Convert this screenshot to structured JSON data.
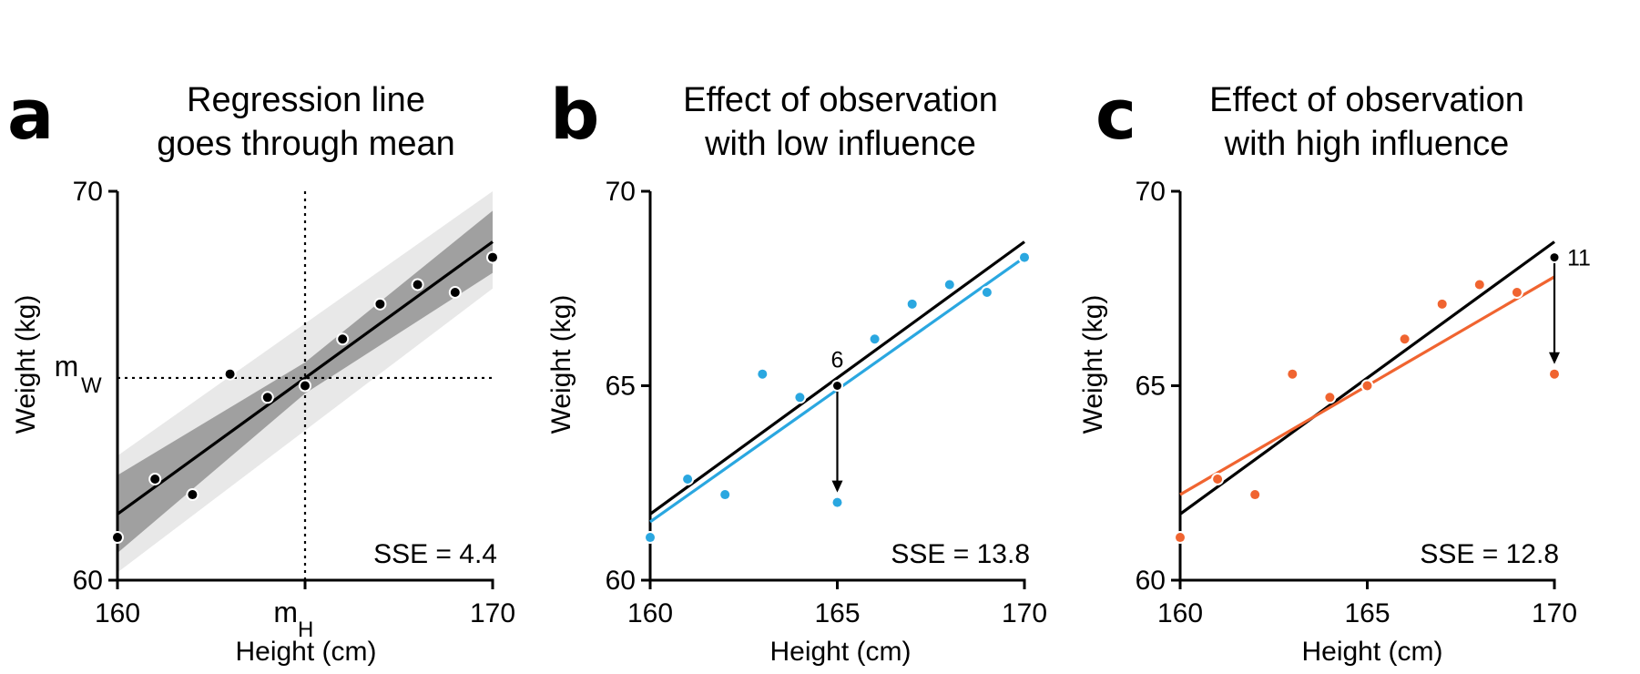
{
  "chart_data": [
    {
      "type": "scatter",
      "panel": "a",
      "title": [
        "Regression line",
        "goes through mean"
      ],
      "xlabel": "Height (cm)",
      "ylabel": "Weight (kg)",
      "xlim": [
        160,
        170
      ],
      "ylim": [
        60,
        70
      ],
      "xticks": [
        "160",
        "170"
      ],
      "yticks": [
        "60",
        "70"
      ],
      "mean_labels": {
        "x_main": "m",
        "x_sub": "H",
        "y_main": "m",
        "y_sub": "W"
      },
      "mean_x": 165,
      "mean_y": 65.2,
      "points": {
        "x": [
          160,
          161,
          162,
          163,
          164,
          165,
          166,
          167,
          168,
          169,
          170
        ],
        "y": [
          61.1,
          62.6,
          62.2,
          65.3,
          64.7,
          65.0,
          66.2,
          67.1,
          67.6,
          67.4,
          68.3
        ]
      },
      "fit": {
        "x": [
          160,
          170
        ],
        "y": [
          61.7,
          68.7
        ]
      },
      "band_inner": {
        "x": [
          160,
          165,
          170
        ],
        "upper": [
          62.7,
          65.6,
          69.5
        ],
        "lower": [
          60.7,
          64.8,
          67.9
        ]
      },
      "band_outer": {
        "x": [
          160,
          170
        ],
        "upper": [
          63.2,
          70.0
        ],
        "lower": [
          60.2,
          67.5
        ]
      },
      "sse": "SSE = 4.4",
      "colors": {
        "points": "#000000",
        "fit": "#000000",
        "band_inner": "#a0a0a0",
        "band_outer": "#e8e8e8"
      }
    },
    {
      "type": "scatter",
      "panel": "b",
      "title": [
        "Effect of observation",
        "with low influence"
      ],
      "xlabel": "Height (cm)",
      "ylabel": "Weight (kg)",
      "xlim": [
        160,
        170
      ],
      "ylim": [
        60,
        70
      ],
      "xticks": [
        "160",
        "165",
        "170"
      ],
      "yticks": [
        "60",
        "65",
        "70"
      ],
      "points": {
        "x": [
          160,
          161,
          162,
          163,
          164,
          166,
          167,
          168,
          169,
          170,
          165
        ],
        "y": [
          61.1,
          62.6,
          62.2,
          65.3,
          64.7,
          66.2,
          67.1,
          67.6,
          67.4,
          68.3,
          62.0
        ]
      },
      "original_point": {
        "x": 165,
        "y": 65.0,
        "label": "6"
      },
      "fit_original": {
        "x": [
          160,
          170
        ],
        "y": [
          61.7,
          68.7
        ]
      },
      "fit_new": {
        "x": [
          160,
          170
        ],
        "y": [
          61.5,
          68.3
        ]
      },
      "sse": "SSE = 13.8",
      "colors": {
        "points": "#2aa7e0",
        "fit_original": "#000000",
        "fit_new": "#2aa7e0"
      }
    },
    {
      "type": "scatter",
      "panel": "c",
      "title": [
        "Effect of observation",
        "with high influence"
      ],
      "xlabel": "Height (cm)",
      "ylabel": "Weight (kg)",
      "xlim": [
        160,
        170
      ],
      "ylim": [
        60,
        70
      ],
      "xticks": [
        "160",
        "165",
        "170"
      ],
      "yticks": [
        "60",
        "65",
        "70"
      ],
      "points": {
        "x": [
          160,
          161,
          162,
          163,
          164,
          165,
          166,
          167,
          168,
          169,
          170
        ],
        "y": [
          61.1,
          62.6,
          62.2,
          65.3,
          64.7,
          65.0,
          66.2,
          67.1,
          67.6,
          67.4,
          65.3
        ]
      },
      "original_point": {
        "x": 170,
        "y": 68.3,
        "label": "11"
      },
      "fit_original": {
        "x": [
          160,
          170
        ],
        "y": [
          61.7,
          68.7
        ]
      },
      "fit_new": {
        "x": [
          160,
          170
        ],
        "y": [
          62.2,
          67.8
        ]
      },
      "sse": "SSE = 12.8",
      "colors": {
        "points": "#f06430",
        "fit_original": "#000000",
        "fit_new": "#f06430"
      }
    }
  ]
}
